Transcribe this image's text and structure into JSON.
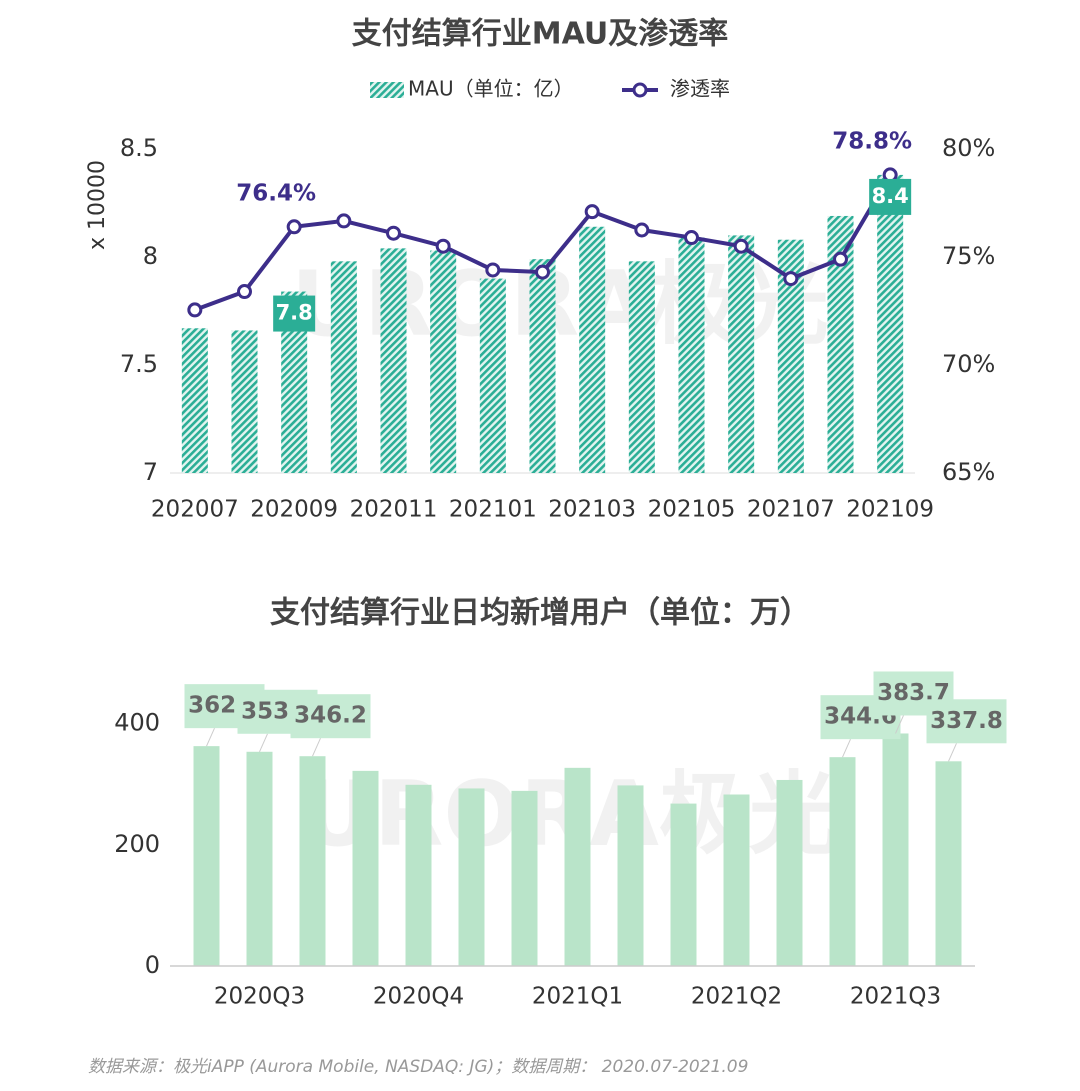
{
  "chart_data": [
    {
      "type": "bar_line",
      "title": "支付结算行业MAU及渗透率",
      "categories": [
        "202007",
        null,
        "202009",
        null,
        "202011",
        null,
        "202101",
        null,
        "202103",
        null,
        "202105",
        null,
        "202107",
        null,
        "202109"
      ],
      "y_label": "x 10000",
      "series": [
        {
          "name": "MAU（单位：亿）",
          "color": "#2bae96",
          "type": "bar",
          "values": [
            7.67,
            7.66,
            7.84,
            7.98,
            8.04,
            8.03,
            7.9,
            7.99,
            8.14,
            7.98,
            8.09,
            8.1,
            8.08,
            8.19,
            8.38
          ],
          "value_labels": [
            null,
            null,
            "7.8",
            null,
            null,
            null,
            null,
            null,
            null,
            null,
            null,
            null,
            null,
            null,
            "8.4"
          ]
        },
        {
          "name": "渗透率",
          "color": "#3d2e8a",
          "type": "line",
          "axis": "y2",
          "values": [
            72.55,
            73.4,
            76.4,
            76.67,
            76.1,
            75.5,
            74.4,
            74.3,
            77.1,
            76.25,
            75.9,
            75.5,
            74.0,
            74.9,
            78.8
          ],
          "value_labels": [
            null,
            null,
            "76.4%",
            null,
            null,
            null,
            null,
            null,
            null,
            null,
            null,
            null,
            null,
            null,
            "78.8%"
          ]
        }
      ],
      "ylim": [
        7,
        8.5
      ],
      "yticks": [
        7,
        7.5,
        8,
        8.5
      ],
      "y2lim": [
        65,
        80
      ],
      "y2ticks": [
        {
          "value": 65,
          "label": "65%"
        },
        {
          "value": 70,
          "label": "70%"
        },
        {
          "value": 75,
          "label": "75%"
        },
        {
          "value": 80,
          "label": "80%"
        }
      ],
      "legend": "top",
      "watermark": "URORA极光"
    },
    {
      "type": "bar",
      "title": "支付结算行业日均新增用户（单位：万）",
      "categories": [
        null,
        "2020Q3",
        null,
        null,
        "2020Q4",
        null,
        null,
        "2021Q1",
        null,
        null,
        "2021Q2",
        null,
        null,
        "2021Q3",
        null
      ],
      "color": "#b9e4c9",
      "values": [
        362.8,
        353.5,
        346.2,
        322,
        299,
        293,
        289,
        327,
        298,
        268,
        283,
        307,
        344.6,
        383.7,
        337.8
      ],
      "value_labels": [
        "362.8",
        "353.5",
        "346.2",
        null,
        null,
        null,
        null,
        null,
        null,
        null,
        null,
        null,
        "344.6",
        "383.7",
        "337.8"
      ],
      "ylim": [
        0,
        500
      ],
      "yticks": [
        0,
        200,
        400
      ],
      "watermark": "URORA极光"
    }
  ],
  "source": "数据来源：极光iAPP (Aurora Mobile, NASDAQ: JG)；数据周期： 2020.07-2021.09"
}
